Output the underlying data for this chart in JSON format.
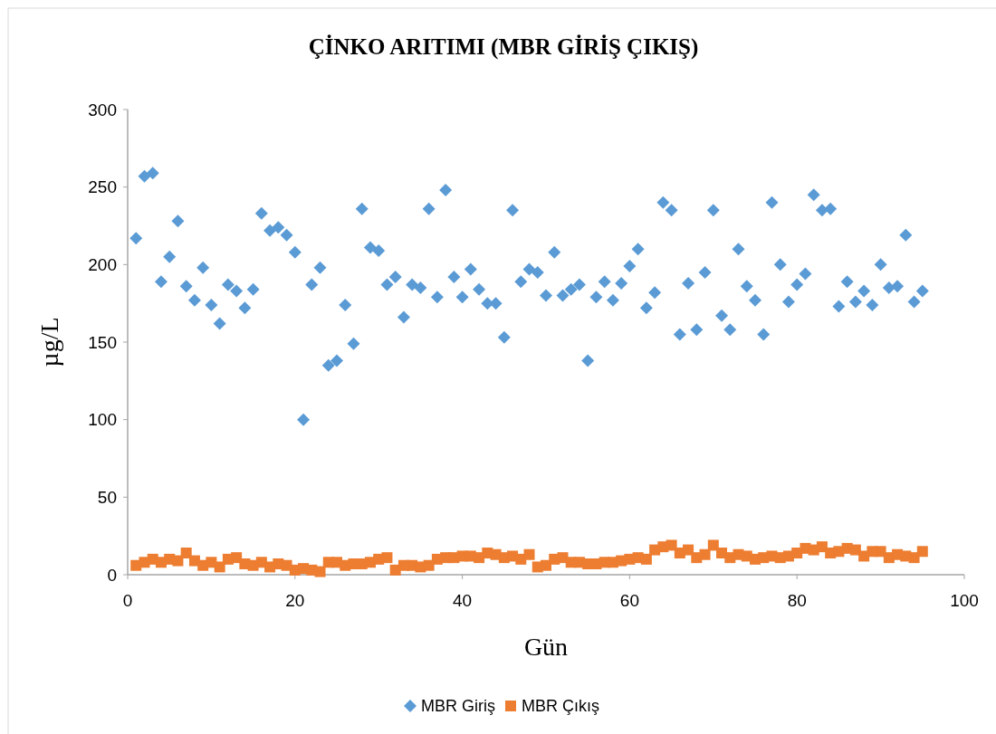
{
  "chart_data": {
    "type": "scatter",
    "title": "ÇİNKO ARITIMI (MBR GİRİŞ ÇIKIŞ)",
    "xlabel": "Gün",
    "ylabel": "µg/L",
    "xlim": [
      0,
      100
    ],
    "xticks": [
      0,
      20,
      40,
      60,
      80,
      100
    ],
    "ylim": [
      0,
      300
    ],
    "yticks": [
      0,
      50,
      100,
      150,
      200,
      250,
      300
    ],
    "grid": false,
    "legend": "bottom",
    "x": [
      1,
      2,
      3,
      4,
      5,
      6,
      7,
      8,
      9,
      10,
      11,
      12,
      13,
      14,
      15,
      16,
      17,
      18,
      19,
      20,
      21,
      22,
      23,
      24,
      25,
      26,
      27,
      28,
      29,
      30,
      31,
      32,
      33,
      34,
      35,
      36,
      37,
      38,
      39,
      40,
      41,
      42,
      43,
      44,
      45,
      46,
      47,
      48,
      49,
      50,
      51,
      52,
      53,
      54,
      55,
      56,
      57,
      58,
      59,
      60,
      61,
      62,
      63,
      64,
      65,
      66,
      67,
      68,
      69,
      70,
      71,
      72,
      73,
      74,
      75,
      76,
      77,
      78,
      79,
      80,
      81,
      82,
      83,
      84,
      85,
      86,
      87,
      88,
      89,
      90,
      91,
      92,
      93,
      94,
      95
    ],
    "series": [
      {
        "name": "MBR Giriş",
        "color": "#5b9bd5",
        "marker": "diamond",
        "values": [
          217,
          257,
          259,
          189,
          205,
          228,
          186,
          177,
          198,
          174,
          162,
          187,
          183,
          172,
          184,
          233,
          222,
          224,
          219,
          208,
          100,
          187,
          198,
          135,
          138,
          174,
          149,
          236,
          211,
          209,
          187,
          192,
          166,
          187,
          185,
          236,
          179,
          248,
          192,
          179,
          197,
          184,
          175,
          175,
          153,
          235,
          189,
          197,
          195,
          180,
          208,
          180,
          184,
          187,
          138,
          179,
          189,
          177,
          188,
          199,
          210,
          172,
          182,
          240,
          235,
          155,
          188,
          158,
          195,
          235,
          167,
          158,
          210,
          186,
          177,
          155,
          240,
          200,
          176,
          187,
          194,
          245,
          235,
          236,
          173,
          189,
          176,
          183,
          174,
          200,
          185,
          186,
          219,
          176,
          183
        ]
      },
      {
        "name": "MBR Çıkış",
        "color": "#ed7d31",
        "marker": "square",
        "values": [
          6,
          8,
          10,
          8,
          10,
          9,
          14,
          9,
          6,
          8,
          5,
          10,
          11,
          7,
          6,
          8,
          5,
          7,
          6,
          3,
          4,
          3,
          2,
          8,
          8,
          6,
          7,
          7,
          8,
          10,
          11,
          3,
          6,
          6,
          5,
          6,
          10,
          11,
          11,
          12,
          12,
          11,
          14,
          13,
          11,
          12,
          10,
          13,
          5,
          6,
          10,
          11,
          8,
          8,
          7,
          7,
          8,
          8,
          9,
          10,
          11,
          10,
          16,
          18,
          19,
          14,
          16,
          11,
          13,
          19,
          14,
          11,
          13,
          12,
          10,
          11,
          12,
          11,
          12,
          14,
          17,
          16,
          18,
          14,
          15,
          17,
          16,
          12,
          15,
          15,
          11,
          13,
          12,
          11,
          15
        ]
      }
    ]
  }
}
